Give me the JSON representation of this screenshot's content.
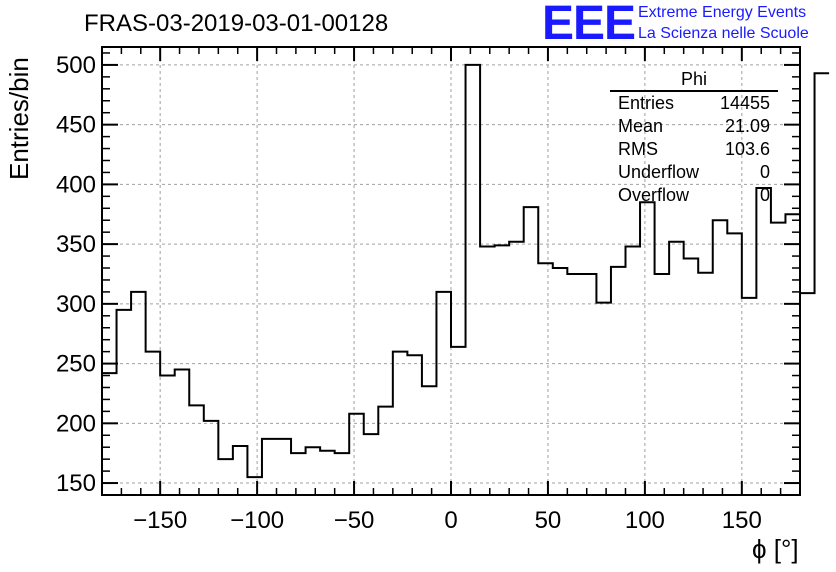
{
  "header": {
    "logo_text": "EEE",
    "logo_line1": "Extreme Energy Events",
    "logo_line2": "La Scienza nelle Scuole",
    "logo_color": "#1a1aff"
  },
  "stats_box": {
    "title": "Phi",
    "rows": [
      {
        "label": "Entries",
        "value": "14455"
      },
      {
        "label": "Mean",
        "value": "21.09"
      },
      {
        "label": "RMS",
        "value": "103.6"
      },
      {
        "label": "Underflow",
        "value": "0"
      },
      {
        "label": "Overflow",
        "value": "0"
      }
    ]
  },
  "chart_data": {
    "type": "bar",
    "title": "FRAS-03-2019-03-01-00128",
    "xlabel": "ϕ [°]",
    "ylabel": "Entries/bin",
    "xlim": [
      -180,
      180
    ],
    "ylim": [
      140,
      515
    ],
    "grid": true,
    "legend": "none",
    "x_ticks": [
      -150,
      -100,
      -50,
      0,
      50,
      100,
      150
    ],
    "y_ticks": [
      150,
      200,
      250,
      300,
      350,
      400,
      450,
      500
    ],
    "bin_width": 7.5,
    "x_start": -180,
    "values": [
      242,
      295,
      310,
      260,
      240,
      245,
      215,
      202,
      170,
      181,
      155,
      187,
      187,
      175,
      180,
      177,
      175,
      208,
      191,
      214,
      260,
      257,
      231,
      310,
      264,
      500,
      348,
      349,
      352,
      381,
      334,
      330,
      325,
      325,
      301,
      331,
      348,
      385,
      325,
      352,
      338,
      326,
      370,
      359,
      305,
      397,
      368,
      375,
      309,
      493
    ]
  }
}
